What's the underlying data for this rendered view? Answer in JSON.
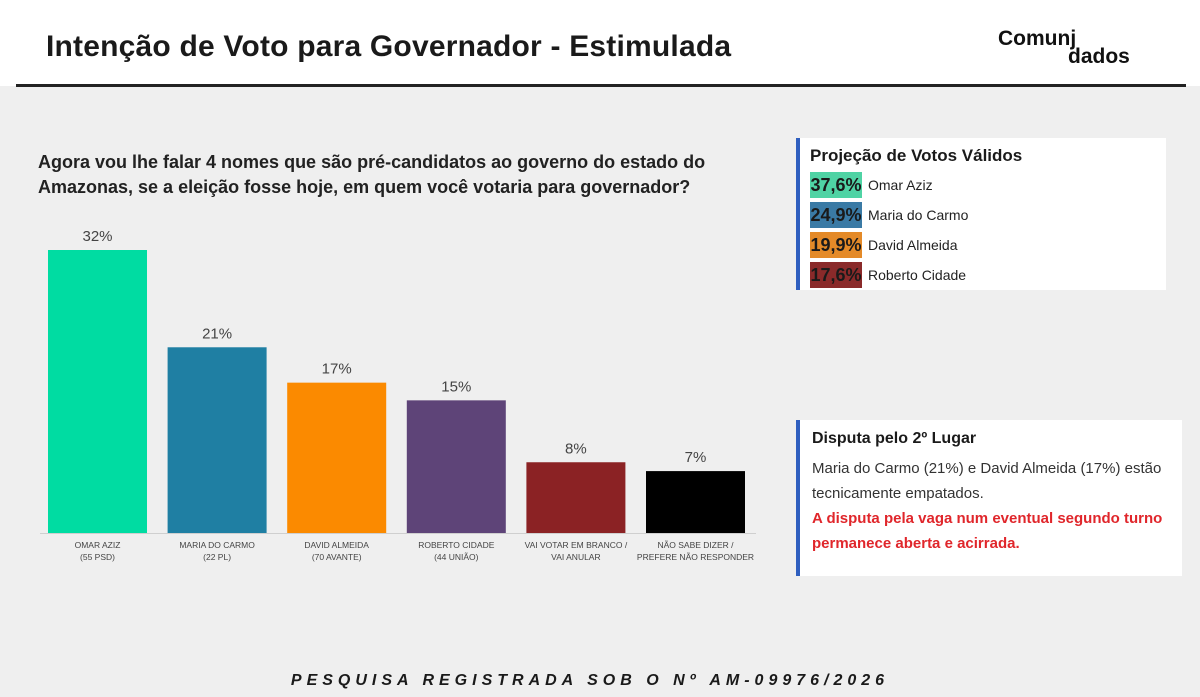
{
  "header": {
    "title": "Intenção de Voto para Governador - Estimulada",
    "logo_line1": "Comunj",
    "logo_line2": "dados"
  },
  "question": "Agora vou lhe falar 4 nomes que são pré-candidatos ao governo do estado do Amazonas, se a eleição fosse hoje, em quem você votaria para governador?",
  "chart_data": {
    "type": "bar",
    "title": "",
    "xlabel": "",
    "ylabel": "",
    "ylim": [
      0,
      32
    ],
    "grid": false,
    "categories": [
      [
        "OMAR AZIZ",
        "(55 PSD)"
      ],
      [
        "MARIA DO CARMO",
        "(22 PL)"
      ],
      [
        "DAVID ALMEIDA",
        "(70 AVANTE)"
      ],
      [
        "ROBERTO CIDADE",
        "(44 UNIÃO)"
      ],
      [
        "VAI VOTAR EM BRANCO /",
        "VAI ANULAR"
      ],
      [
        "NÃO SABE DIZER /",
        "PREFERE NÃO RESPONDER"
      ]
    ],
    "values": [
      32,
      21,
      17,
      15,
      8,
      7
    ],
    "value_labels": [
      "32%",
      "21%",
      "17%",
      "15%",
      "8%",
      "7%"
    ],
    "colors": [
      "#00dca2",
      "#1f7fa3",
      "#fb8a00",
      "#5e4478",
      "#8b2224",
      "#000000"
    ]
  },
  "projection": {
    "title": "Projeção de Votos Válidos",
    "items": [
      {
        "pct": "37,6%",
        "name": "Omar Aziz",
        "color": "#4fd3a4"
      },
      {
        "pct": "24,9%",
        "name": "Maria do Carmo",
        "color": "#3a7aa5"
      },
      {
        "pct": "19,9%",
        "name": "David Almeida",
        "color": "#e48a28"
      },
      {
        "pct": "17,6%",
        "name": "Roberto Cidade",
        "color": "#8a2a2a"
      }
    ]
  },
  "dispute": {
    "title": "Disputa pelo 2º Lugar",
    "body": "Maria do Carmo (21%) e David Almeida (17%) estão tecnicamente empatados.",
    "alert": "A disputa pela vaga num eventual segundo turno permanece aberta e acirrada."
  },
  "footer": "PESQUISA REGISTRADA SOB O Nº AM-09976/2026"
}
